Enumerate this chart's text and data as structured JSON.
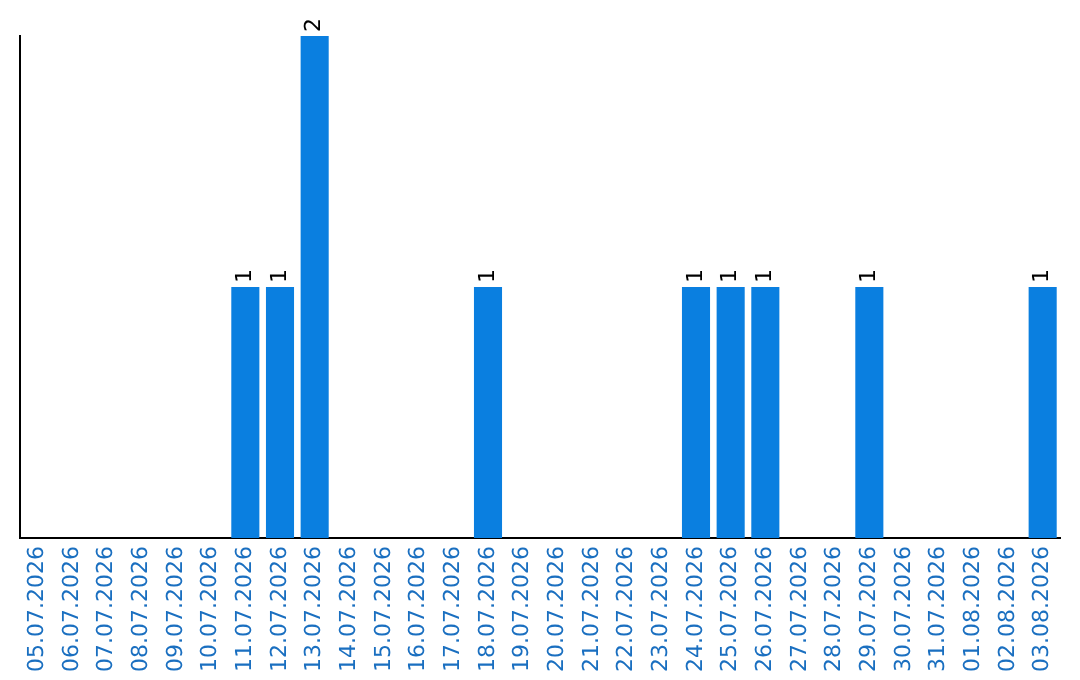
{
  "chart_data": {
    "type": "bar",
    "categories": [
      "05.07.2026",
      "06.07.2026",
      "07.07.2026",
      "08.07.2026",
      "09.07.2026",
      "10.07.2026",
      "11.07.2026",
      "12.07.2026",
      "13.07.2026",
      "14.07.2026",
      "15.07.2026",
      "16.07.2026",
      "17.07.2026",
      "18.07.2026",
      "19.07.2026",
      "20.07.2026",
      "21.07.2026",
      "22.07.2026",
      "23.07.2026",
      "24.07.2026",
      "25.07.2026",
      "26.07.2026",
      "27.07.2026",
      "28.07.2026",
      "29.07.2026",
      "30.07.2026",
      "31.07.2026",
      "01.08.2026",
      "02.08.2026",
      "03.08.2026"
    ],
    "values": [
      0,
      0,
      0,
      0,
      0,
      0,
      1,
      1,
      2,
      0,
      0,
      0,
      0,
      1,
      0,
      0,
      0,
      0,
      0,
      1,
      1,
      1,
      0,
      0,
      1,
      0,
      0,
      0,
      0,
      1
    ],
    "value_labels": [
      null,
      null,
      null,
      null,
      null,
      null,
      "1",
      "1",
      "2",
      null,
      null,
      null,
      null,
      "1",
      null,
      null,
      null,
      null,
      null,
      "1",
      "1",
      "1",
      null,
      null,
      "1",
      null,
      null,
      null,
      null,
      "1"
    ],
    "color": "#0a7fe0",
    "grid": false,
    "legend": false
  }
}
